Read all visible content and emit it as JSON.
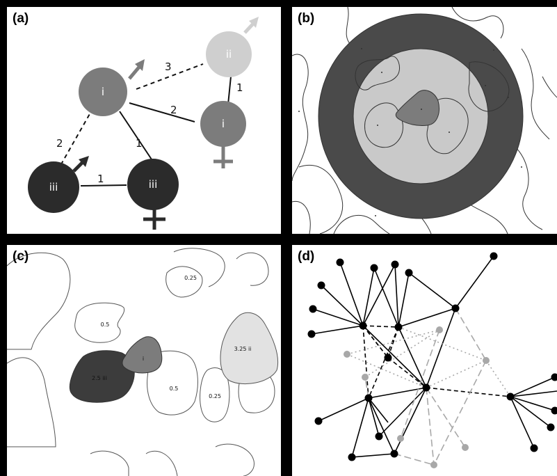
{
  "panels": {
    "a": {
      "label": "(a)",
      "nodes": [
        {
          "id": "top-left",
          "text": "i"
        },
        {
          "id": "top-right",
          "text": "ii"
        },
        {
          "id": "mid-right",
          "text": "i"
        },
        {
          "id": "bottom-left",
          "text": "iii"
        },
        {
          "id": "bottom-mid",
          "text": "iii"
        }
      ],
      "edges": [
        "3",
        "1",
        "2",
        "2",
        "1",
        "1"
      ]
    },
    "b": {
      "label": "(b)"
    },
    "c": {
      "label": "(c)",
      "patches": [
        "0.25",
        "0.5",
        "3.25 ii",
        "2.5 iii",
        "i",
        "0.5",
        "0.25"
      ]
    },
    "d": {
      "label": "(d)"
    }
  },
  "colors": {
    "dark": "#2b2b2b",
    "mid": "#7c7c7c",
    "light": "#cfcfcf",
    "ring_dark": "#4a4a4a",
    "ring_light": "#c9c9c9"
  }
}
